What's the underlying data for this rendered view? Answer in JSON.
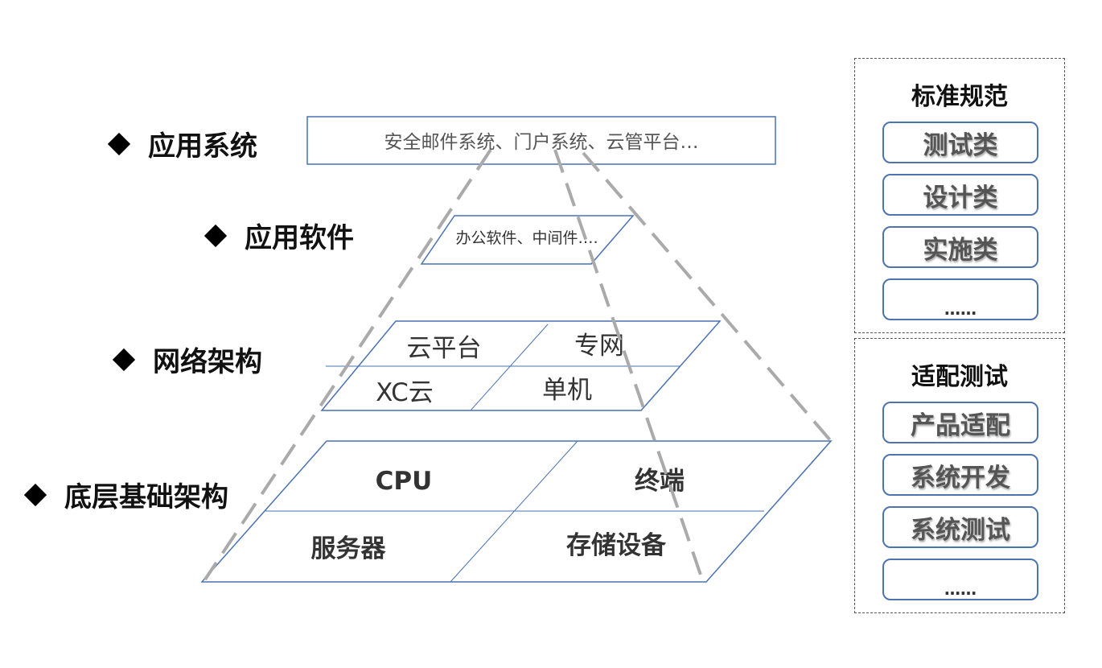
{
  "layers": [
    {
      "label": "应用系统"
    },
    {
      "label": "应用软件"
    },
    {
      "label": "网络架构"
    },
    {
      "label": "底层基础架构"
    }
  ],
  "application_system_box": "安全邮件系统、门户系统、云管平台…",
  "application_software_box": "办公软件、中间件….",
  "network_cells": {
    "cloud_platform": "云平台",
    "private_network": "专网",
    "xc_cloud": "XC云",
    "standalone": "单机"
  },
  "infrastructure_cells": {
    "cpu": "CPU",
    "terminal": "终端",
    "server": "服务器",
    "storage": "存储设备"
  },
  "standards_panel": {
    "title": "标准规范",
    "items": [
      "测试类",
      "设计类",
      "实施类",
      "……"
    ]
  },
  "adaptation_panel": {
    "title": "适配测试",
    "items": [
      "产品适配",
      "系统开发",
      "系统测试",
      "……"
    ]
  },
  "colors": {
    "box_border": "#4a72b0",
    "dashed_line": "#aaaaaa",
    "bullet": "#000000"
  }
}
